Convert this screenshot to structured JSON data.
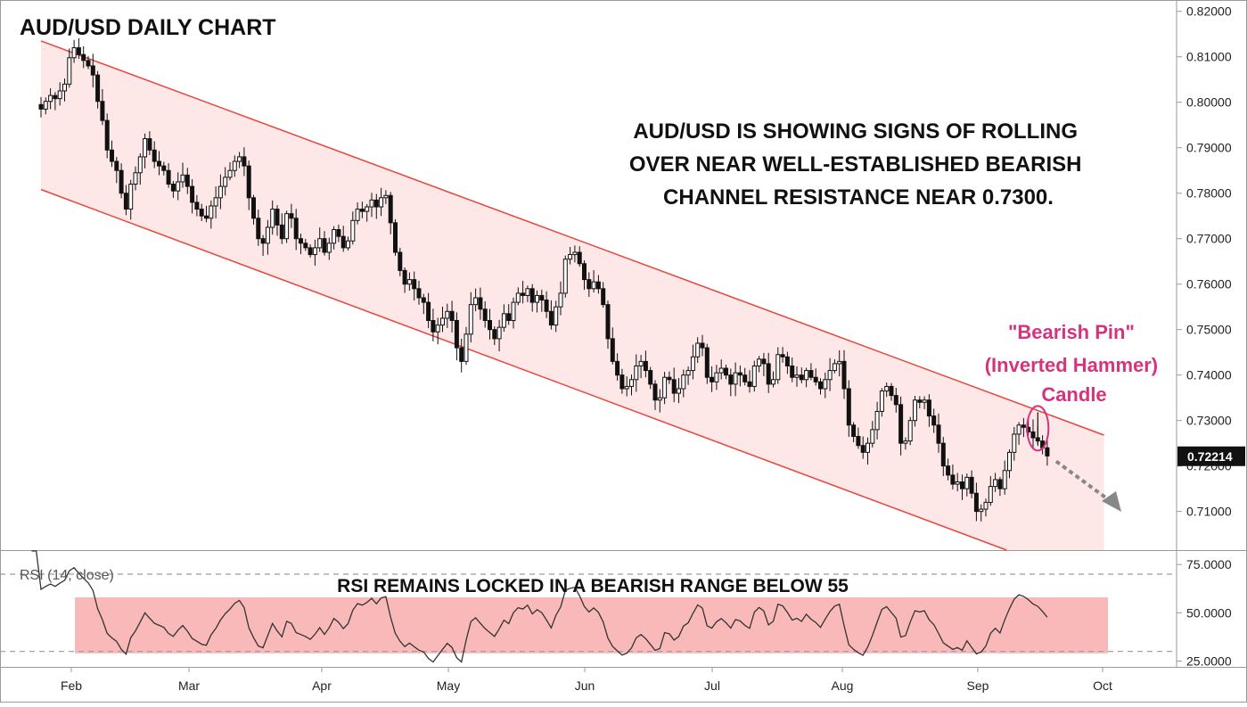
{
  "chart_data": {
    "type": "candlestick",
    "title": "AUD/USD DAILY CHART",
    "annotation_lines": [
      "AUD/USD IS SHOWING SIGNS OF ROLLING",
      "OVER NEAR WELL-ESTABLISHED BEARISH",
      "CHANNEL RESISTANCE NEAR 0.7300."
    ],
    "pin_label_lines": [
      "\"Bearish Pin\"",
      "(Inverted Hammer)",
      "Candle"
    ],
    "current_price_label": "0.72214",
    "current_price": 0.72214,
    "x_labels": [
      "Feb",
      "Mar",
      "Apr",
      "May",
      "Jun",
      "Jul",
      "Aug",
      "Sep",
      "Oct"
    ],
    "price_axis": {
      "range": [
        0.7015,
        0.8225
      ],
      "tick_values": [
        0.71,
        0.72,
        0.73,
        0.74,
        0.75,
        0.76,
        0.77,
        0.78,
        0.79,
        0.8,
        0.81,
        0.82
      ],
      "tick_labels": [
        "0.71000",
        "0.72000",
        "0.73000",
        "0.74000",
        "0.75000",
        "0.76000",
        "0.77000",
        "0.78000",
        "0.79000",
        "0.80000",
        "0.81000",
        "0.82000"
      ]
    },
    "channel": {
      "upper": [
        [
          0,
          0.8135
        ],
        [
          225,
          0.7268
        ]
      ],
      "lower": [
        [
          0,
          0.7808
        ],
        [
          225,
          0.6935
        ]
      ]
    },
    "close_series": [
      0.7985,
      0.8002,
      0.8015,
      0.8008,
      0.8025,
      0.804,
      0.8098,
      0.812,
      0.8105,
      0.8092,
      0.808,
      0.806,
      0.8002,
      0.796,
      0.7895,
      0.787,
      0.785,
      0.78,
      0.7765,
      0.782,
      0.7845,
      0.788,
      0.792,
      0.7895,
      0.787,
      0.786,
      0.785,
      0.782,
      0.7805,
      0.7825,
      0.784,
      0.7815,
      0.778,
      0.7765,
      0.775,
      0.7745,
      0.7772,
      0.779,
      0.7815,
      0.7835,
      0.785,
      0.787,
      0.788,
      0.786,
      0.779,
      0.7745,
      0.77,
      0.769,
      0.7725,
      0.7765,
      0.773,
      0.77,
      0.7755,
      0.7745,
      0.77,
      0.769,
      0.768,
      0.7665,
      0.768,
      0.77,
      0.767,
      0.769,
      0.772,
      0.7705,
      0.768,
      0.7695,
      0.774,
      0.7765,
      0.776,
      0.777,
      0.7785,
      0.777,
      0.779,
      0.7795,
      0.7735,
      0.767,
      0.763,
      0.76,
      0.761,
      0.759,
      0.757,
      0.756,
      0.752,
      0.7495,
      0.751,
      0.7525,
      0.754,
      0.752,
      0.746,
      0.743,
      0.749,
      0.7555,
      0.757,
      0.7545,
      0.752,
      0.75,
      0.748,
      0.7505,
      0.7535,
      0.752,
      0.756,
      0.758,
      0.7575,
      0.759,
      0.756,
      0.7575,
      0.7565,
      0.754,
      0.751,
      0.755,
      0.758,
      0.7655,
      0.7665,
      0.767,
      0.7645,
      0.761,
      0.759,
      0.7605,
      0.759,
      0.7555,
      0.748,
      0.743,
      0.74,
      0.737,
      0.7375,
      0.739,
      0.742,
      0.743,
      0.741,
      0.738,
      0.7345,
      0.735,
      0.7395,
      0.739,
      0.736,
      0.737,
      0.74,
      0.741,
      0.744,
      0.747,
      0.746,
      0.7395,
      0.7385,
      0.7405,
      0.7415,
      0.74,
      0.738,
      0.7405,
      0.74,
      0.7385,
      0.7375,
      0.742,
      0.7435,
      0.7425,
      0.738,
      0.739,
      0.7445,
      0.744,
      0.742,
      0.7395,
      0.74,
      0.739,
      0.741,
      0.7395,
      0.7385,
      0.737,
      0.739,
      0.741,
      0.7425,
      0.743,
      0.737,
      0.729,
      0.7265,
      0.7245,
      0.723,
      0.725,
      0.728,
      0.732,
      0.7365,
      0.7375,
      0.7355,
      0.7335,
      0.725,
      0.7255,
      0.73,
      0.7345,
      0.734,
      0.7345,
      0.731,
      0.729,
      0.725,
      0.72,
      0.718,
      0.716,
      0.7165,
      0.715,
      0.7175,
      0.714,
      0.71,
      0.7105,
      0.712,
      0.7155,
      0.717,
      0.715,
      0.719,
      0.723,
      0.727,
      0.729,
      0.7285,
      0.7275,
      0.7262,
      0.7255,
      0.724,
      0.7222
    ],
    "rsi": {
      "label": "RSI (14, close)",
      "annotation": "RSI REMAINS LOCKED IN A BEARISH RANGE BELOW 55",
      "range": [
        22,
        82
      ],
      "tick_values": [
        25,
        50,
        75
      ],
      "tick_labels": [
        "25.0000",
        "50.0000",
        "75.0000"
      ],
      "levels": [
        30,
        70
      ],
      "band": [
        29,
        58
      ]
    },
    "colors": {
      "channel_line": "#e8453c",
      "channel_fill": "#fde7e7",
      "rsi_band": "#f9b9b9",
      "candle": "#111111",
      "pin_highlight": "#d6337f",
      "forecast_arrow": "#888888"
    },
    "grid": false,
    "legend": "none"
  }
}
